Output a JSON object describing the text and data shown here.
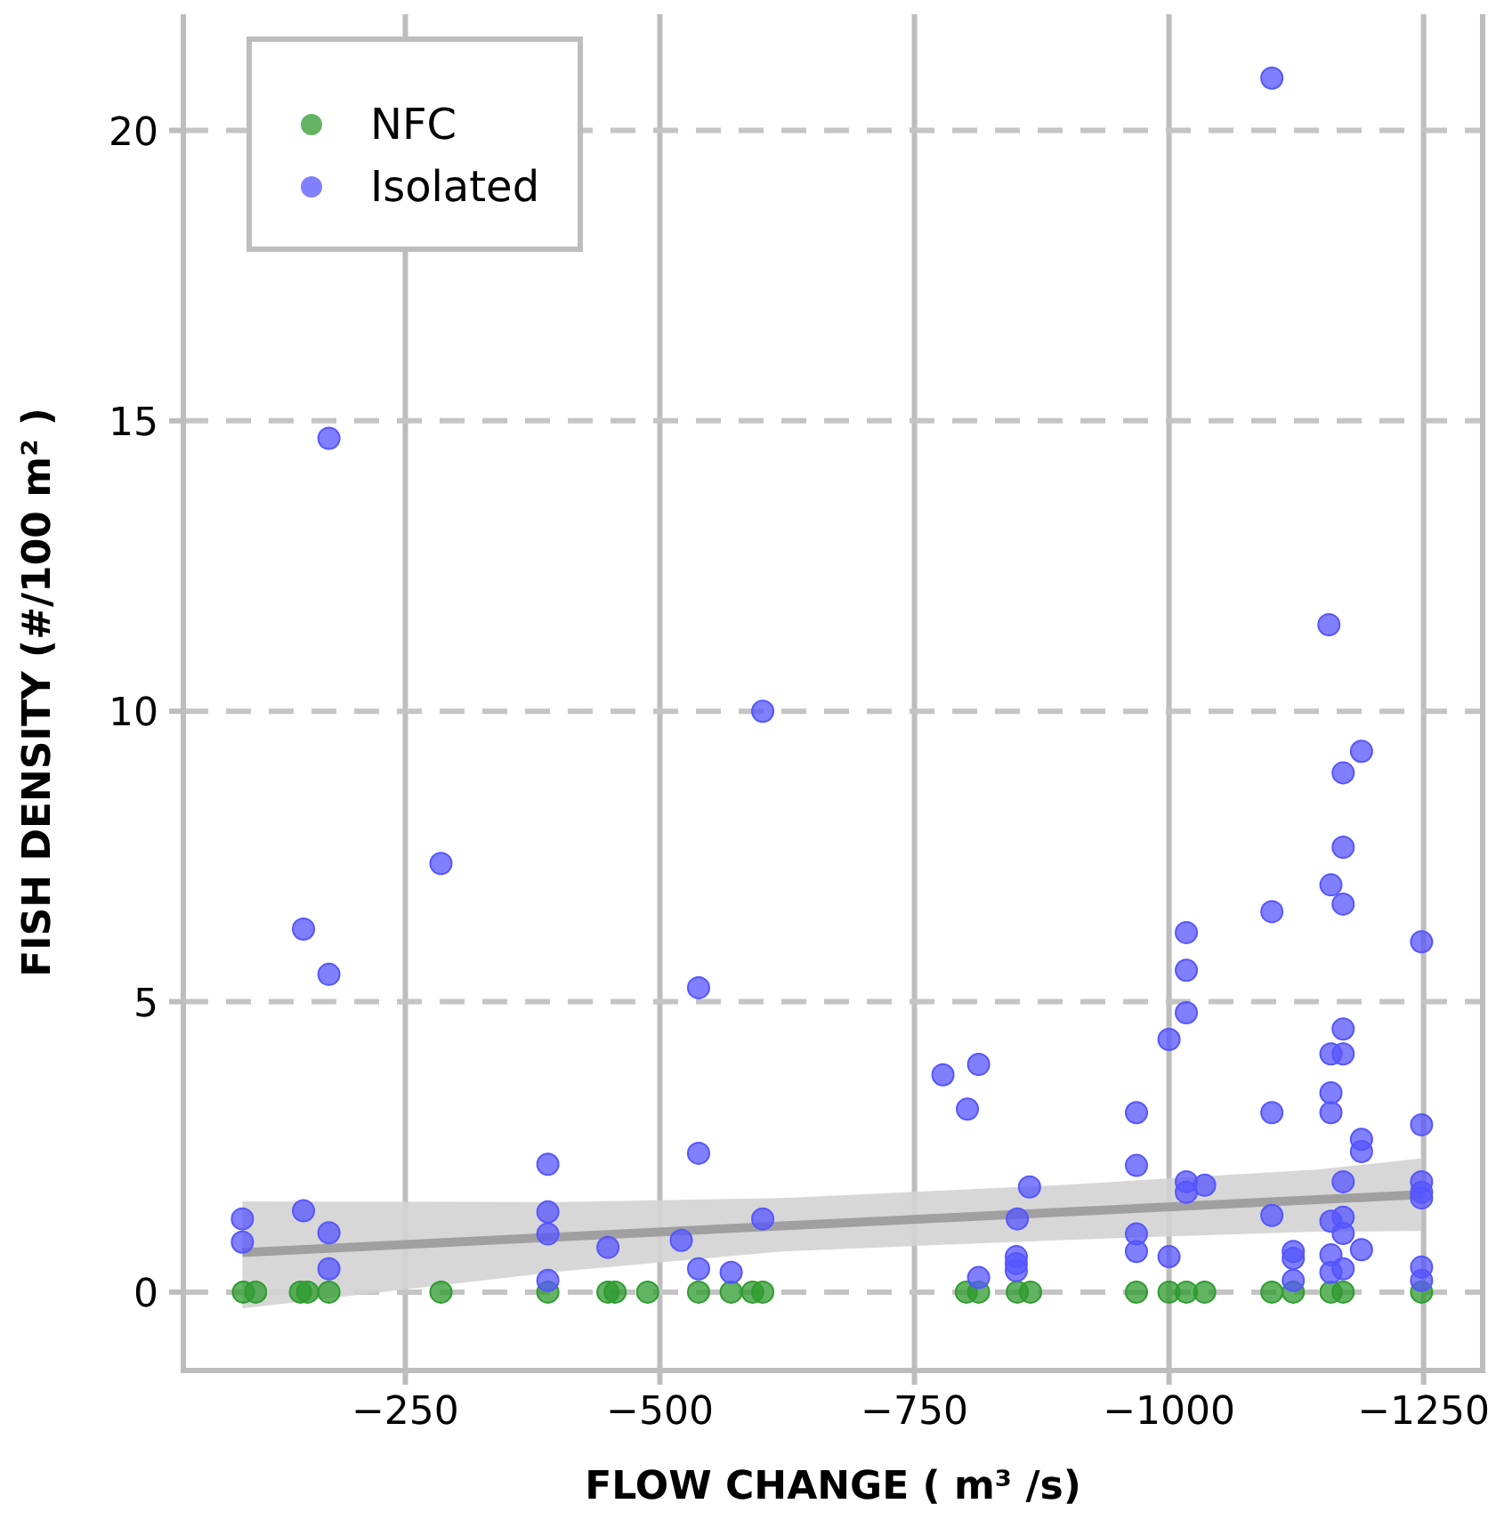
{
  "chart_data": {
    "type": "scatter",
    "xlabel": "FLOW CHANGE ( m³ /s)",
    "ylabel": "FISH DENSITY (#/100  m² )",
    "xlim": [
      -32,
      -1308
    ],
    "xticks": [
      {
        "value": -250,
        "label": "−250"
      },
      {
        "value": -500,
        "label": "−500"
      },
      {
        "value": -750,
        "label": "−750"
      },
      {
        "value": -1000,
        "label": "−1000"
      },
      {
        "value": -1250,
        "label": "−1250"
      }
    ],
    "ylim": [
      -1.35,
      22
    ],
    "yticks": [
      0,
      5,
      10,
      15,
      20
    ],
    "grid": true,
    "legend": "top left",
    "series": [
      {
        "name": "NFC",
        "color": "#2e9b2e",
        "marker": "circle",
        "x": [
          -91,
          -103,
          -147,
          -154,
          -175,
          -285,
          -390,
          -449,
          -456,
          -488,
          -538,
          -570,
          -591,
          -601,
          -801,
          -813,
          -851,
          -864,
          -968,
          -1000,
          -1017,
          -1035,
          -1101,
          -1122,
          -1159,
          -1171,
          -1248
        ],
        "values": [
          0,
          0,
          0,
          0,
          0,
          0,
          0,
          0,
          0,
          0,
          0,
          0,
          0,
          0,
          0,
          0,
          0,
          0,
          0,
          0,
          0,
          0,
          0,
          0,
          0,
          0,
          0
        ]
      },
      {
        "name": "Isolated",
        "color": "#5555ff",
        "marker": "circle",
        "x": [
          -90,
          -90,
          -150,
          -150,
          -175,
          -175,
          -175,
          -175,
          -285,
          -390,
          -390,
          -390,
          -390,
          -449,
          -521,
          -538,
          -538,
          -538,
          -570,
          -601,
          -601,
          -778,
          -802,
          -813,
          -813,
          -851,
          -850,
          -850,
          -850,
          -863,
          -968,
          -968,
          -968,
          -968,
          -1000,
          -1000,
          -1017,
          -1017,
          -1017,
          -1017,
          -1017,
          -1035,
          -1101,
          -1101,
          -1101,
          -1101,
          -1122,
          -1122,
          -1122,
          -1157,
          -1159,
          -1159,
          -1159,
          -1159,
          -1159,
          -1159,
          -1159,
          -1171,
          -1171,
          -1171,
          -1171,
          -1171,
          -1171,
          -1171,
          -1171,
          -1171,
          -1189,
          -1189,
          -1189,
          -1189,
          -1248,
          -1248,
          -1248,
          -1248,
          -1248,
          -1248,
          -1248
        ],
        "values": [
          1.26,
          0.86,
          6.25,
          1.4,
          14.7,
          5.47,
          1.02,
          0.4,
          7.38,
          2.2,
          1.38,
          1.0,
          0.2,
          0.77,
          0.89,
          5.24,
          2.39,
          0.4,
          0.34,
          10.0,
          1.26,
          3.74,
          3.15,
          3.92,
          0.25,
          1.26,
          0.61,
          0.49,
          0.37,
          1.81,
          3.09,
          2.18,
          1.0,
          0.7,
          4.35,
          0.61,
          6.19,
          5.54,
          4.81,
          1.9,
          1.72,
          1.84,
          20.9,
          6.55,
          3.09,
          1.32,
          0.7,
          0.58,
          0.2,
          11.49,
          7.01,
          4.1,
          3.43,
          3.09,
          1.22,
          0.64,
          0.34,
          8.94,
          7.66,
          6.68,
          4.53,
          4.1,
          1.9,
          1.29,
          1.01,
          0.4,
          9.31,
          2.63,
          2.42,
          0.73,
          6.03,
          2.88,
          1.9,
          1.72,
          1.62,
          0.43,
          0.2
        ]
      },
      {
        "type": "line",
        "color": "#a0a0a0",
        "x": [
          -90,
          -400,
          -620,
          -900,
          -1145,
          -1248
        ],
        "values": [
          0.68,
          0.95,
          1.14,
          1.38,
          1.59,
          1.68
        ],
        "lower": [
          -0.28,
          0.35,
          0.7,
          0.9,
          1.04,
          1.05
        ],
        "upper": [
          1.56,
          1.55,
          1.62,
          1.85,
          2.11,
          2.3
        ]
      }
    ]
  }
}
